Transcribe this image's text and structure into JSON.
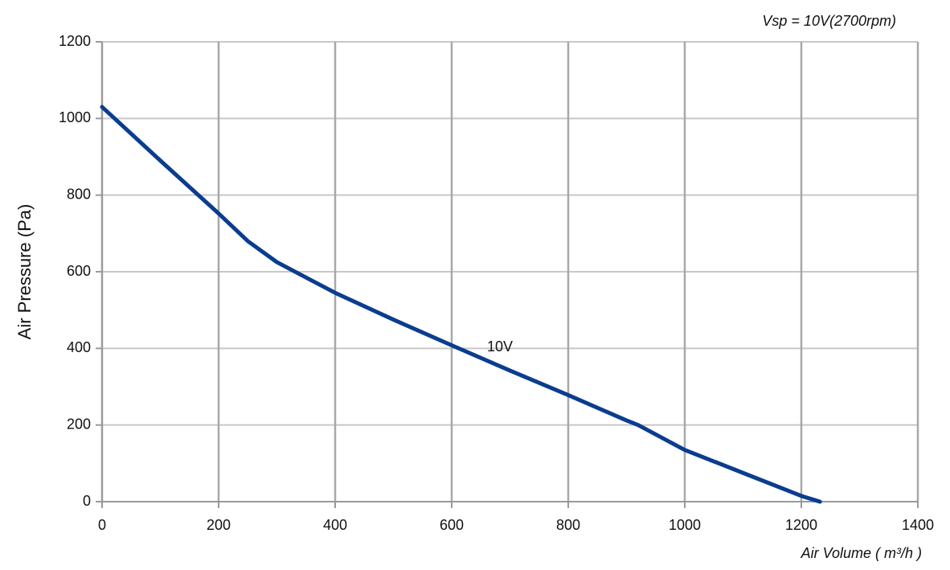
{
  "chart_data": {
    "type": "line",
    "annotation": "Vsp = 10V(2700rpm)",
    "x_label": "Air Volume ( m³/h )",
    "y_label": "Air Pressure  (Pa)",
    "x": [
      0,
      100,
      200,
      250,
      300,
      400,
      500,
      600,
      700,
      800,
      900,
      920,
      1000,
      1100,
      1200,
      1232
    ],
    "series": [
      {
        "name": "10V",
        "color": "#0a3d8f",
        "values": [
          1030,
          890,
          752,
          680,
          625,
          545,
          475,
          408,
          342,
          278,
          212,
          200,
          135,
          75,
          15,
          0
        ]
      }
    ],
    "xlim": [
      0,
      1400
    ],
    "xticks": [
      0,
      200,
      400,
      600,
      800,
      1000,
      1200,
      1400
    ],
    "ylim": [
      0,
      1200
    ],
    "yticks": [
      0,
      200,
      400,
      600,
      800,
      1000,
      1200
    ],
    "grid": true
  }
}
